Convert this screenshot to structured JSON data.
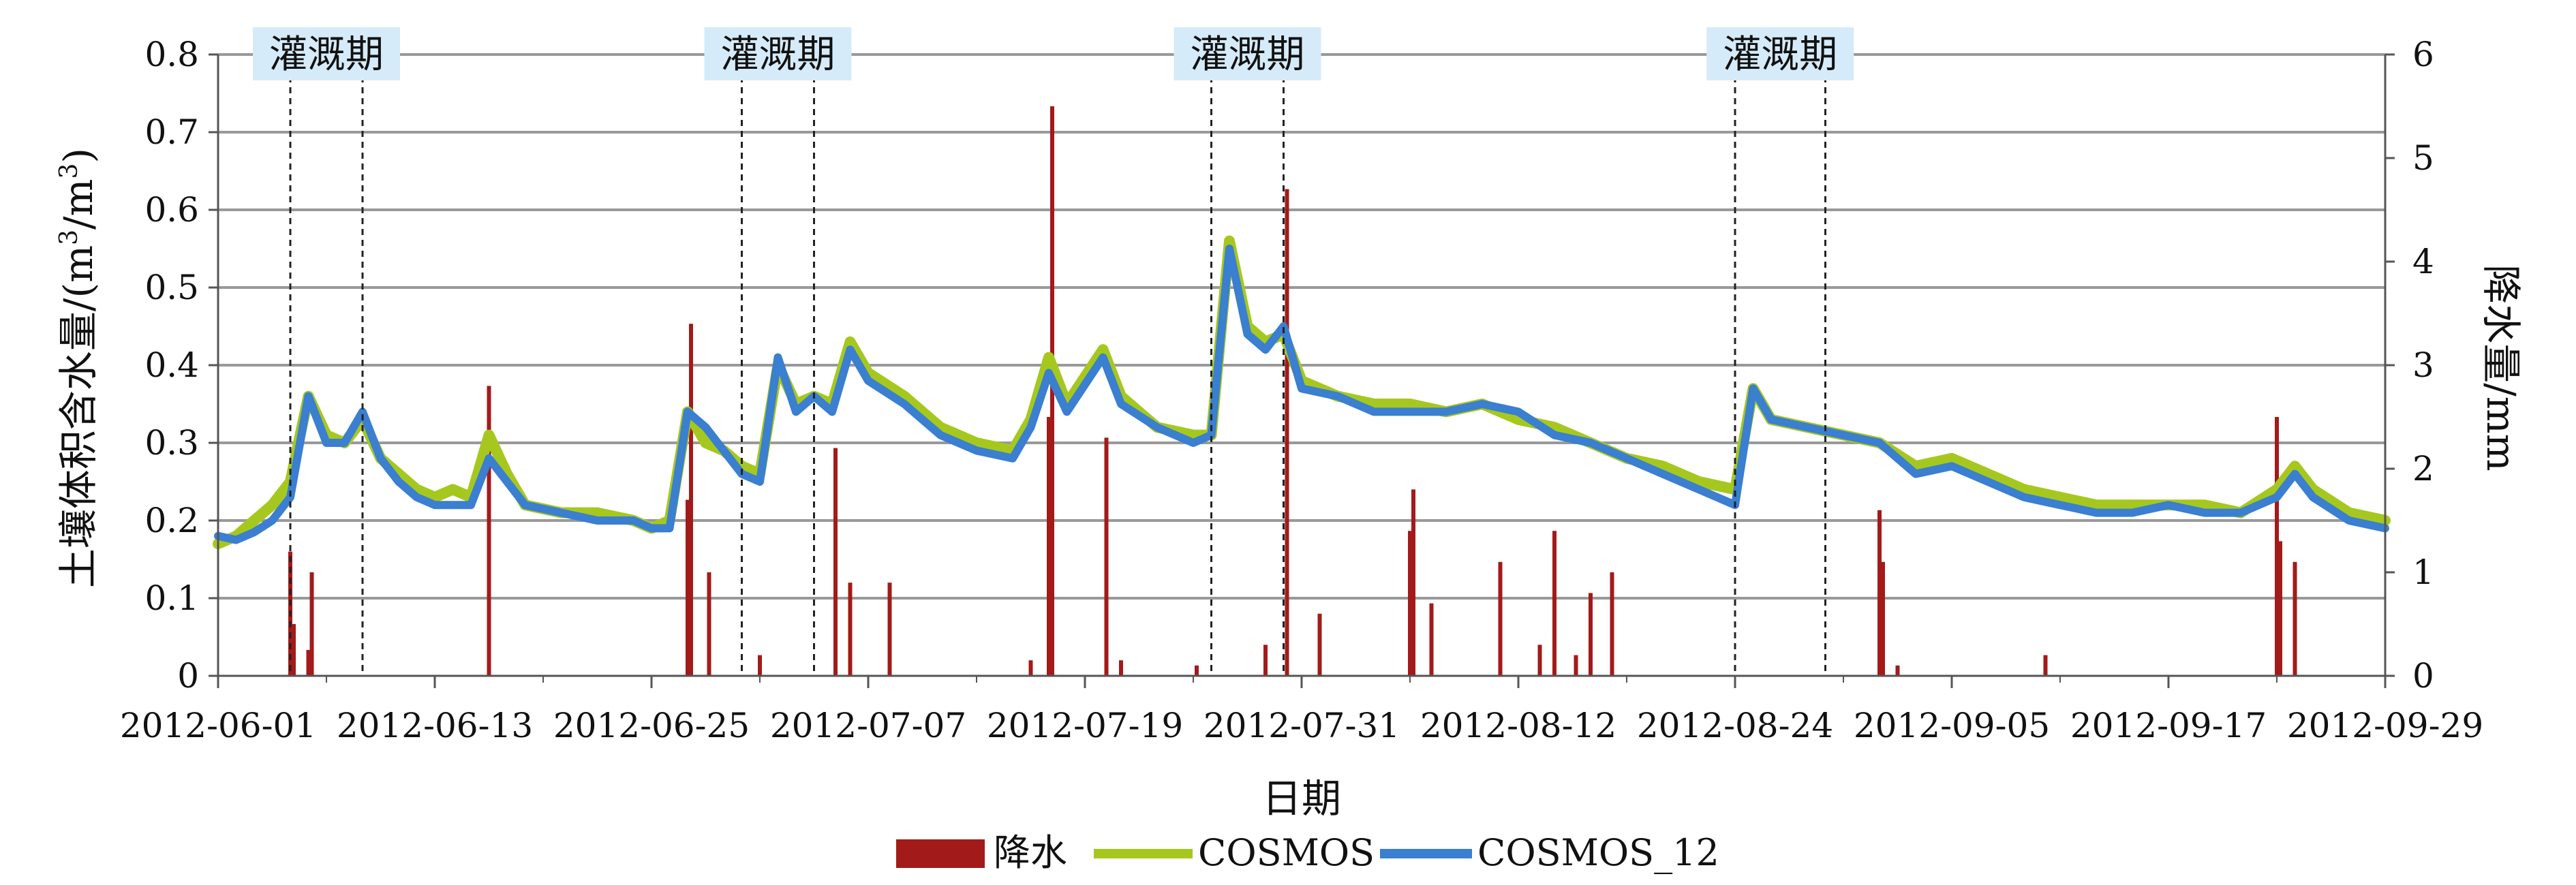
{
  "chart_data": {
    "type": "line",
    "title": "",
    "xlabel": "日期",
    "ylabel_left": "土壤体积含水量/(m³/m³)",
    "ylabel_left_main": "土壤体积含水量/(m",
    "ylabel_left_sup1": "3",
    "ylabel_left_mid": "/m",
    "ylabel_left_sup2": "3",
    "ylabel_left_end": ")",
    "ylabel_right": "降水量/mm",
    "ylim_left": [
      0,
      0.8
    ],
    "ylim_right": [
      0,
      6
    ],
    "left_ticks": [
      "0",
      "0.1",
      "0.2",
      "0.3",
      "0.4",
      "0.5",
      "0.6",
      "0.7",
      "0.8"
    ],
    "right_ticks": [
      "0",
      "1",
      "2",
      "3",
      "4",
      "5",
      "6"
    ],
    "x_ticks": [
      "2012-06-01",
      "2012-06-13",
      "2012-06-25",
      "2012-07-07",
      "2012-07-19",
      "2012-07-31",
      "2012-08-12",
      "2012-08-24",
      "2012-09-05",
      "2012-09-17",
      "2012-09-29"
    ],
    "xlim": [
      "2012-06-01",
      "2012-09-29"
    ],
    "grid": true,
    "legend_position": "bottom",
    "legend": [
      "降水",
      "COSMOS",
      "COSMOS_12"
    ],
    "colors": {
      "precip": "#a31a1a",
      "cosmos": "#a6c81e",
      "cosmos12": "#3a7fd0",
      "grid": "#999999",
      "label_bg": "#d6ebf9"
    },
    "irrigation_label": "灌溉期",
    "irrigation_periods": [
      [
        "2012-06-05",
        "2012-06-09"
      ],
      [
        "2012-06-30",
        "2012-07-04"
      ],
      [
        "2012-07-26",
        "2012-07-30"
      ],
      [
        "2012-08-24",
        "2012-08-29"
      ]
    ],
    "series": [
      {
        "name": "降水",
        "kind": "bar",
        "axis": "right",
        "points": [
          [
            "2012-06-05",
            1.2
          ],
          [
            "2012-06-05",
            0.5
          ],
          [
            "2012-06-06",
            0.25
          ],
          [
            "2012-06-06",
            1.0
          ],
          [
            "2012-06-16",
            2.8
          ],
          [
            "2012-06-27",
            3.4
          ],
          [
            "2012-06-27",
            1.7
          ],
          [
            "2012-06-28",
            1.0
          ],
          [
            "2012-07-01",
            0.2
          ],
          [
            "2012-07-05",
            2.2
          ],
          [
            "2012-07-06",
            0.9
          ],
          [
            "2012-07-08",
            0.9
          ],
          [
            "2012-07-16",
            0.15
          ],
          [
            "2012-07-17",
            5.5
          ],
          [
            "2012-07-17",
            2.5
          ],
          [
            "2012-07-20",
            2.3
          ],
          [
            "2012-07-21",
            0.15
          ],
          [
            "2012-07-25",
            0.1
          ],
          [
            "2012-07-29",
            0.3
          ],
          [
            "2012-07-30",
            4.7
          ],
          [
            "2012-08-01",
            0.6
          ],
          [
            "2012-08-06",
            1.8
          ],
          [
            "2012-08-06",
            1.4
          ],
          [
            "2012-08-07",
            0.7
          ],
          [
            "2012-08-11",
            1.1
          ],
          [
            "2012-08-13",
            0.3
          ],
          [
            "2012-08-14",
            1.4
          ],
          [
            "2012-08-15",
            0.2
          ],
          [
            "2012-08-16",
            0.8
          ],
          [
            "2012-08-17",
            1.0
          ],
          [
            "2012-09-01",
            1.6
          ],
          [
            "2012-09-01",
            1.1
          ],
          [
            "2012-09-02",
            0.1
          ],
          [
            "2012-09-10",
            0.2
          ],
          [
            "2012-09-23",
            2.5
          ],
          [
            "2012-09-23",
            1.3
          ],
          [
            "2012-09-24",
            1.1
          ]
        ]
      },
      {
        "name": "COSMOS",
        "kind": "line",
        "axis": "left",
        "points": [
          [
            "2012-06-01",
            0.17
          ],
          [
            "2012-06-02",
            0.18
          ],
          [
            "2012-06-03",
            0.2
          ],
          [
            "2012-06-04",
            0.22
          ],
          [
            "2012-06-05",
            0.25
          ],
          [
            "2012-06-06",
            0.36
          ],
          [
            "2012-06-07",
            0.31
          ],
          [
            "2012-06-08",
            0.3
          ],
          [
            "2012-06-09",
            0.33
          ],
          [
            "2012-06-10",
            0.28
          ],
          [
            "2012-06-11",
            0.26
          ],
          [
            "2012-06-12",
            0.24
          ],
          [
            "2012-06-13",
            0.23
          ],
          [
            "2012-06-14",
            0.24
          ],
          [
            "2012-06-15",
            0.23
          ],
          [
            "2012-06-16",
            0.31
          ],
          [
            "2012-06-17",
            0.26
          ],
          [
            "2012-06-18",
            0.22
          ],
          [
            "2012-06-20",
            0.21
          ],
          [
            "2012-06-22",
            0.21
          ],
          [
            "2012-06-24",
            0.2
          ],
          [
            "2012-06-25",
            0.19
          ],
          [
            "2012-06-26",
            0.2
          ],
          [
            "2012-06-27",
            0.34
          ],
          [
            "2012-06-28",
            0.3
          ],
          [
            "2012-06-29",
            0.29
          ],
          [
            "2012-06-30",
            0.27
          ],
          [
            "2012-07-01",
            0.26
          ],
          [
            "2012-07-02",
            0.4
          ],
          [
            "2012-07-03",
            0.35
          ],
          [
            "2012-07-04",
            0.36
          ],
          [
            "2012-07-05",
            0.35
          ],
          [
            "2012-07-06",
            0.43
          ],
          [
            "2012-07-07",
            0.39
          ],
          [
            "2012-07-09",
            0.36
          ],
          [
            "2012-07-11",
            0.32
          ],
          [
            "2012-07-13",
            0.3
          ],
          [
            "2012-07-15",
            0.29
          ],
          [
            "2012-07-16",
            0.33
          ],
          [
            "2012-07-17",
            0.41
          ],
          [
            "2012-07-18",
            0.35
          ],
          [
            "2012-07-20",
            0.42
          ],
          [
            "2012-07-21",
            0.36
          ],
          [
            "2012-07-23",
            0.32
          ],
          [
            "2012-07-25",
            0.31
          ],
          [
            "2012-07-26",
            0.31
          ],
          [
            "2012-07-27",
            0.56
          ],
          [
            "2012-07-28",
            0.45
          ],
          [
            "2012-07-29",
            0.43
          ],
          [
            "2012-07-30",
            0.44
          ],
          [
            "2012-07-31",
            0.38
          ],
          [
            "2012-08-02",
            0.36
          ],
          [
            "2012-08-04",
            0.35
          ],
          [
            "2012-08-06",
            0.35
          ],
          [
            "2012-08-08",
            0.34
          ],
          [
            "2012-08-10",
            0.35
          ],
          [
            "2012-08-12",
            0.33
          ],
          [
            "2012-08-14",
            0.32
          ],
          [
            "2012-08-16",
            0.3
          ],
          [
            "2012-08-18",
            0.28
          ],
          [
            "2012-08-20",
            0.27
          ],
          [
            "2012-08-22",
            0.25
          ],
          [
            "2012-08-24",
            0.24
          ],
          [
            "2012-08-25",
            0.37
          ],
          [
            "2012-08-26",
            0.33
          ],
          [
            "2012-08-28",
            0.32
          ],
          [
            "2012-08-30",
            0.31
          ],
          [
            "2012-09-01",
            0.3
          ],
          [
            "2012-09-03",
            0.27
          ],
          [
            "2012-09-05",
            0.28
          ],
          [
            "2012-09-07",
            0.26
          ],
          [
            "2012-09-09",
            0.24
          ],
          [
            "2012-09-11",
            0.23
          ],
          [
            "2012-09-13",
            0.22
          ],
          [
            "2012-09-15",
            0.22
          ],
          [
            "2012-09-17",
            0.22
          ],
          [
            "2012-09-19",
            0.22
          ],
          [
            "2012-09-21",
            0.21
          ],
          [
            "2012-09-23",
            0.24
          ],
          [
            "2012-09-24",
            0.27
          ],
          [
            "2012-09-25",
            0.24
          ],
          [
            "2012-09-27",
            0.21
          ],
          [
            "2012-09-29",
            0.2
          ]
        ]
      },
      {
        "name": "COSMOS_12",
        "kind": "line",
        "axis": "left",
        "points": [
          [
            "2012-06-01",
            0.18
          ],
          [
            "2012-06-02",
            0.175
          ],
          [
            "2012-06-03",
            0.185
          ],
          [
            "2012-06-04",
            0.2
          ],
          [
            "2012-06-05",
            0.23
          ],
          [
            "2012-06-06",
            0.36
          ],
          [
            "2012-06-07",
            0.3
          ],
          [
            "2012-06-08",
            0.3
          ],
          [
            "2012-06-09",
            0.34
          ],
          [
            "2012-06-10",
            0.28
          ],
          [
            "2012-06-11",
            0.25
          ],
          [
            "2012-06-12",
            0.23
          ],
          [
            "2012-06-13",
            0.22
          ],
          [
            "2012-06-14",
            0.22
          ],
          [
            "2012-06-15",
            0.22
          ],
          [
            "2012-06-16",
            0.28
          ],
          [
            "2012-06-17",
            0.25
          ],
          [
            "2012-06-18",
            0.22
          ],
          [
            "2012-06-20",
            0.21
          ],
          [
            "2012-06-22",
            0.2
          ],
          [
            "2012-06-24",
            0.2
          ],
          [
            "2012-06-25",
            0.19
          ],
          [
            "2012-06-26",
            0.19
          ],
          [
            "2012-06-27",
            0.34
          ],
          [
            "2012-06-28",
            0.32
          ],
          [
            "2012-06-29",
            0.29
          ],
          [
            "2012-06-30",
            0.26
          ],
          [
            "2012-07-01",
            0.25
          ],
          [
            "2012-07-02",
            0.41
          ],
          [
            "2012-07-03",
            0.34
          ],
          [
            "2012-07-04",
            0.36
          ],
          [
            "2012-07-05",
            0.34
          ],
          [
            "2012-07-06",
            0.42
          ],
          [
            "2012-07-07",
            0.38
          ],
          [
            "2012-07-09",
            0.35
          ],
          [
            "2012-07-11",
            0.31
          ],
          [
            "2012-07-13",
            0.29
          ],
          [
            "2012-07-15",
            0.28
          ],
          [
            "2012-07-16",
            0.32
          ],
          [
            "2012-07-17",
            0.39
          ],
          [
            "2012-07-18",
            0.34
          ],
          [
            "2012-07-20",
            0.41
          ],
          [
            "2012-07-21",
            0.35
          ],
          [
            "2012-07-23",
            0.32
          ],
          [
            "2012-07-25",
            0.3
          ],
          [
            "2012-07-26",
            0.31
          ],
          [
            "2012-07-27",
            0.55
          ],
          [
            "2012-07-28",
            0.44
          ],
          [
            "2012-07-29",
            0.42
          ],
          [
            "2012-07-30",
            0.45
          ],
          [
            "2012-07-31",
            0.37
          ],
          [
            "2012-08-02",
            0.36
          ],
          [
            "2012-08-04",
            0.34
          ],
          [
            "2012-08-06",
            0.34
          ],
          [
            "2012-08-08",
            0.34
          ],
          [
            "2012-08-10",
            0.35
          ],
          [
            "2012-08-12",
            0.34
          ],
          [
            "2012-08-14",
            0.31
          ],
          [
            "2012-08-16",
            0.3
          ],
          [
            "2012-08-18",
            0.28
          ],
          [
            "2012-08-20",
            0.26
          ],
          [
            "2012-08-22",
            0.24
          ],
          [
            "2012-08-24",
            0.22
          ],
          [
            "2012-08-25",
            0.37
          ],
          [
            "2012-08-26",
            0.33
          ],
          [
            "2012-08-28",
            0.32
          ],
          [
            "2012-08-30",
            0.31
          ],
          [
            "2012-09-01",
            0.3
          ],
          [
            "2012-09-03",
            0.26
          ],
          [
            "2012-09-05",
            0.27
          ],
          [
            "2012-09-07",
            0.25
          ],
          [
            "2012-09-09",
            0.23
          ],
          [
            "2012-09-11",
            0.22
          ],
          [
            "2012-09-13",
            0.21
          ],
          [
            "2012-09-15",
            0.21
          ],
          [
            "2012-09-17",
            0.22
          ],
          [
            "2012-09-19",
            0.21
          ],
          [
            "2012-09-21",
            0.21
          ],
          [
            "2012-09-23",
            0.23
          ],
          [
            "2012-09-24",
            0.26
          ],
          [
            "2012-09-25",
            0.23
          ],
          [
            "2012-09-27",
            0.2
          ],
          [
            "2012-09-29",
            0.19
          ]
        ]
      }
    ]
  }
}
